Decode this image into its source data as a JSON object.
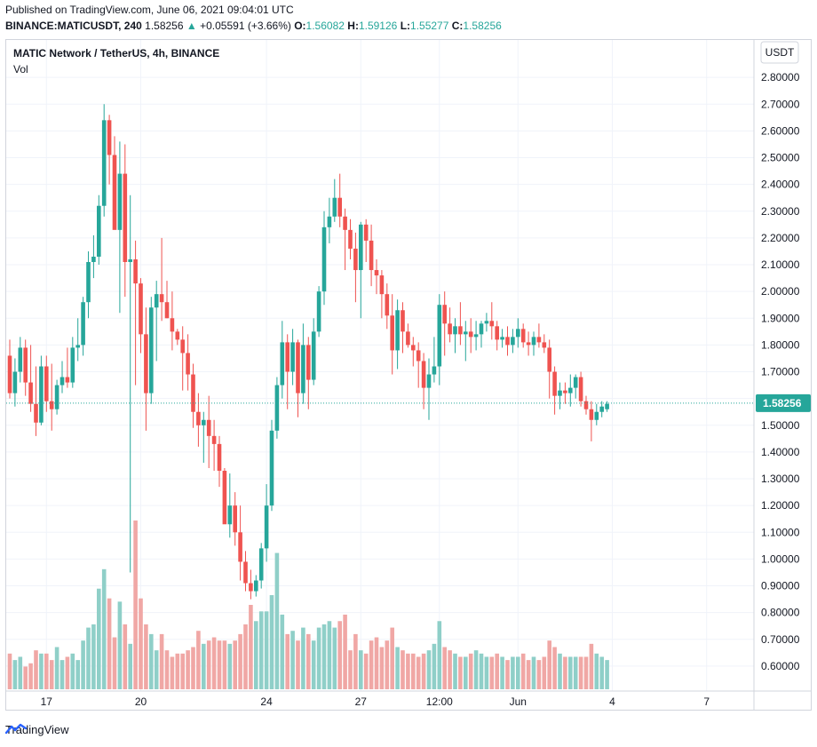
{
  "header": {
    "published": "Published on TradingView.com, June 06, 2021 09:04:01 UTC",
    "symbol": "BINANCE:MATICUSDT, 240",
    "price": "1.58256",
    "arrow": "▲",
    "change": "+0.05591 (+3.66%)",
    "o_label": "O:",
    "o": "1.56082",
    "h_label": "H:",
    "h": "1.59126",
    "l_label": "L:",
    "l": "1.55277",
    "c_label": "C:",
    "c": "1.58256"
  },
  "legend": {
    "title": "MATIC Network / TetherUS, 4h, BINANCE",
    "vol": "Vol"
  },
  "currency_label": "USDT",
  "last_price_label": "1.58256",
  "footer": {
    "brand": "TradingView",
    "logo_icon": "tradingview-logo-icon"
  },
  "colors": {
    "up": "#26a69a",
    "down": "#ef5350",
    "up_vol": "#8fcfc8",
    "down_vol": "#f0a7a5"
  },
  "chart_data": {
    "type": "candlestick",
    "title": "MATIC Network / TetherUS, 4h, BINANCE",
    "ylim": [
      0.55,
      2.9
    ],
    "y_ticks": [
      "0.60000",
      "0.70000",
      "0.80000",
      "0.90000",
      "1.00000",
      "1.10000",
      "1.20000",
      "1.30000",
      "1.40000",
      "1.50000",
      "1.60000",
      "1.70000",
      "1.80000",
      "1.90000",
      "2.00000",
      "2.10000",
      "2.20000",
      "2.30000",
      "2.40000",
      "2.50000",
      "2.60000",
      "2.70000",
      "2.80000"
    ],
    "x_ticks": [
      {
        "label": "17",
        "index": 7
      },
      {
        "label": "20",
        "index": 25
      },
      {
        "label": "24",
        "index": 49
      },
      {
        "label": "27",
        "index": 67
      },
      {
        "label": "12:00",
        "index": 82
      },
      {
        "label": "Jun",
        "index": 97
      },
      {
        "label": "4",
        "index": 115
      },
      {
        "label": "7",
        "index": 133
      }
    ],
    "last_price": 1.58256,
    "candles": [
      [
        1.76,
        1.82,
        1.6,
        1.62,
        0.55
      ],
      [
        1.62,
        1.75,
        1.57,
        1.7,
        0.45
      ],
      [
        1.7,
        1.83,
        1.66,
        1.79,
        0.5
      ],
      [
        1.79,
        1.82,
        1.61,
        1.66,
        0.35
      ],
      [
        1.66,
        1.8,
        1.55,
        1.58,
        0.4
      ],
      [
        1.58,
        1.72,
        1.46,
        1.51,
        0.6
      ],
      [
        1.51,
        1.76,
        1.5,
        1.72,
        0.55
      ],
      [
        1.72,
        1.76,
        1.55,
        1.59,
        0.55
      ],
      [
        1.59,
        1.73,
        1.48,
        1.56,
        0.45
      ],
      [
        1.56,
        1.67,
        1.54,
        1.65,
        0.65
      ],
      [
        1.65,
        1.74,
        1.62,
        1.68,
        0.45
      ],
      [
        1.68,
        1.79,
        1.64,
        1.66,
        0.5
      ],
      [
        1.66,
        1.83,
        1.64,
        1.79,
        0.55
      ],
      [
        1.79,
        1.9,
        1.74,
        1.8,
        0.45
      ],
      [
        1.8,
        1.98,
        1.76,
        1.96,
        0.75
      ],
      [
        1.96,
        2.15,
        1.9,
        2.11,
        0.95
      ],
      [
        2.11,
        2.21,
        2.05,
        2.13,
        1.0
      ],
      [
        2.13,
        2.36,
        2.1,
        2.32,
        1.55
      ],
      [
        2.32,
        2.7,
        2.28,
        2.64,
        1.85
      ],
      [
        2.64,
        2.66,
        2.4,
        2.51,
        1.4
      ],
      [
        2.51,
        2.58,
        2.25,
        2.23,
        0.8
      ],
      [
        2.23,
        2.56,
        1.92,
        2.44,
        1.35
      ],
      [
        2.44,
        2.55,
        1.98,
        2.11,
        1.0
      ],
      [
        2.11,
        2.36,
        0.95,
        2.12,
        0.7
      ],
      [
        2.12,
        2.19,
        1.65,
        2.03,
        2.6
      ],
      [
        2.03,
        2.05,
        1.77,
        1.84,
        1.4
      ],
      [
        1.84,
        1.94,
        1.48,
        1.62,
        1.0
      ],
      [
        1.62,
        1.98,
        1.58,
        1.94,
        0.85
      ],
      [
        1.94,
        2.04,
        1.74,
        1.99,
        0.6
      ],
      [
        1.99,
        2.2,
        1.89,
        1.96,
        0.85
      ],
      [
        1.96,
        2.04,
        1.9,
        1.9,
        0.6
      ],
      [
        1.9,
        2.0,
        1.78,
        1.85,
        0.5
      ],
      [
        1.85,
        1.86,
        1.8,
        1.82,
        0.55
      ],
      [
        1.82,
        1.87,
        1.63,
        1.77,
        0.55
      ],
      [
        1.77,
        1.84,
        1.63,
        1.69,
        0.6
      ],
      [
        1.69,
        1.73,
        1.49,
        1.55,
        0.65
      ],
      [
        1.55,
        1.62,
        1.42,
        1.5,
        0.9
      ],
      [
        1.5,
        1.55,
        1.36,
        1.52,
        0.7
      ],
      [
        1.52,
        1.61,
        1.34,
        1.46,
        0.75
      ],
      [
        1.46,
        1.52,
        1.33,
        1.43,
        0.8
      ],
      [
        1.43,
        1.46,
        1.27,
        1.33,
        0.75
      ],
      [
        1.33,
        1.34,
        1.14,
        1.13,
        0.75
      ],
      [
        1.13,
        1.32,
        1.08,
        1.2,
        0.7
      ],
      [
        1.2,
        1.25,
        1.05,
        1.1,
        0.75
      ],
      [
        1.1,
        1.2,
        0.92,
        0.99,
        0.85
      ],
      [
        0.99,
        1.03,
        0.88,
        0.91,
        1.0
      ],
      [
        0.91,
        0.96,
        0.85,
        0.88,
        1.3
      ],
      [
        0.88,
        0.94,
        0.86,
        0.92,
        1.05
      ],
      [
        0.92,
        1.06,
        0.89,
        1.04,
        1.2
      ],
      [
        1.04,
        1.28,
        0.99,
        1.2,
        1.2
      ],
      [
        1.2,
        1.52,
        1.18,
        1.48,
        1.45
      ],
      [
        1.48,
        1.68,
        1.45,
        1.65,
        2.1
      ],
      [
        1.65,
        1.89,
        1.6,
        1.81,
        1.15
      ],
      [
        1.81,
        1.84,
        1.56,
        1.7,
        0.85
      ],
      [
        1.7,
        1.86,
        1.65,
        1.81,
        0.9
      ],
      [
        1.81,
        1.82,
        1.53,
        1.62,
        0.75
      ],
      [
        1.62,
        1.88,
        1.58,
        1.8,
        0.95
      ],
      [
        1.8,
        1.83,
        1.56,
        1.67,
        0.85
      ],
      [
        1.67,
        1.9,
        1.65,
        1.85,
        0.75
      ],
      [
        1.85,
        2.02,
        1.83,
        2.0,
        0.95
      ],
      [
        2.0,
        2.3,
        1.95,
        2.24,
        1.0
      ],
      [
        2.24,
        2.35,
        2.18,
        2.28,
        1.05
      ],
      [
        2.28,
        2.42,
        2.26,
        2.35,
        0.95
      ],
      [
        2.35,
        2.44,
        2.24,
        2.28,
        1.05
      ],
      [
        2.28,
        2.31,
        2.08,
        2.23,
        1.15
      ],
      [
        2.23,
        2.27,
        2.12,
        2.16,
        0.6
      ],
      [
        2.16,
        2.22,
        1.96,
        2.08,
        0.85
      ],
      [
        2.08,
        2.26,
        1.9,
        2.25,
        0.6
      ],
      [
        2.25,
        2.27,
        2.11,
        2.19,
        0.55
      ],
      [
        2.19,
        2.25,
        2.02,
        2.08,
        0.75
      ],
      [
        2.08,
        2.12,
        1.99,
        2.06,
        0.8
      ],
      [
        2.06,
        2.08,
        1.9,
        1.99,
        0.65
      ],
      [
        1.99,
        2.03,
        1.86,
        1.91,
        0.75
      ],
      [
        1.91,
        1.99,
        1.69,
        1.78,
        0.95
      ],
      [
        1.78,
        1.97,
        1.71,
        1.93,
        0.65
      ],
      [
        1.93,
        1.96,
        1.77,
        1.85,
        0.6
      ],
      [
        1.85,
        1.88,
        1.79,
        1.8,
        0.55
      ],
      [
        1.8,
        1.83,
        1.72,
        1.78,
        0.55
      ],
      [
        1.78,
        1.81,
        1.64,
        1.74,
        0.5
      ],
      [
        1.74,
        1.77,
        1.56,
        1.64,
        0.55
      ],
      [
        1.64,
        1.75,
        1.52,
        1.69,
        0.6
      ],
      [
        1.69,
        1.83,
        1.66,
        1.72,
        0.7
      ],
      [
        1.72,
        1.99,
        1.65,
        1.95,
        1.05
      ],
      [
        1.95,
        2.0,
        1.76,
        1.88,
        0.65
      ],
      [
        1.88,
        1.94,
        1.81,
        1.84,
        0.6
      ],
      [
        1.84,
        1.9,
        1.77,
        1.87,
        0.55
      ],
      [
        1.87,
        1.96,
        1.8,
        1.84,
        0.5
      ],
      [
        1.84,
        1.89,
        1.74,
        1.85,
        0.5
      ],
      [
        1.85,
        1.9,
        1.77,
        1.83,
        0.55
      ],
      [
        1.83,
        1.89,
        1.78,
        1.84,
        0.6
      ],
      [
        1.84,
        1.89,
        1.79,
        1.88,
        0.55
      ],
      [
        1.88,
        1.92,
        1.85,
        1.89,
        0.5
      ],
      [
        1.89,
        1.96,
        1.82,
        1.87,
        0.5
      ],
      [
        1.87,
        1.89,
        1.78,
        1.82,
        0.55
      ],
      [
        1.82,
        1.86,
        1.79,
        1.83,
        0.5
      ],
      [
        1.83,
        1.87,
        1.76,
        1.8,
        0.45
      ],
      [
        1.8,
        1.86,
        1.77,
        1.83,
        0.5
      ],
      [
        1.83,
        1.9,
        1.79,
        1.86,
        0.5
      ],
      [
        1.86,
        1.88,
        1.79,
        1.81,
        0.55
      ],
      [
        1.81,
        1.85,
        1.76,
        1.8,
        0.45
      ],
      [
        1.8,
        1.85,
        1.76,
        1.83,
        0.5
      ],
      [
        1.83,
        1.88,
        1.79,
        1.81,
        0.45
      ],
      [
        1.81,
        1.84,
        1.77,
        1.79,
        0.5
      ],
      [
        1.79,
        1.82,
        1.6,
        1.7,
        0.75
      ],
      [
        1.7,
        1.72,
        1.54,
        1.61,
        0.65
      ],
      [
        1.61,
        1.66,
        1.56,
        1.63,
        0.55
      ],
      [
        1.63,
        1.66,
        1.58,
        1.62,
        0.5
      ],
      [
        1.62,
        1.69,
        1.57,
        1.64,
        0.5
      ],
      [
        1.64,
        1.69,
        1.6,
        1.68,
        0.5
      ],
      [
        1.68,
        1.7,
        1.57,
        1.59,
        0.5
      ],
      [
        1.59,
        1.61,
        1.54,
        1.56,
        0.5
      ],
      [
        1.56,
        1.59,
        1.44,
        1.52,
        0.7
      ],
      [
        1.52,
        1.58,
        1.5,
        1.55,
        0.55
      ],
      [
        1.55,
        1.59,
        1.53,
        1.57,
        0.5
      ],
      [
        1.56,
        1.59,
        1.55,
        1.58,
        0.45
      ]
    ]
  }
}
